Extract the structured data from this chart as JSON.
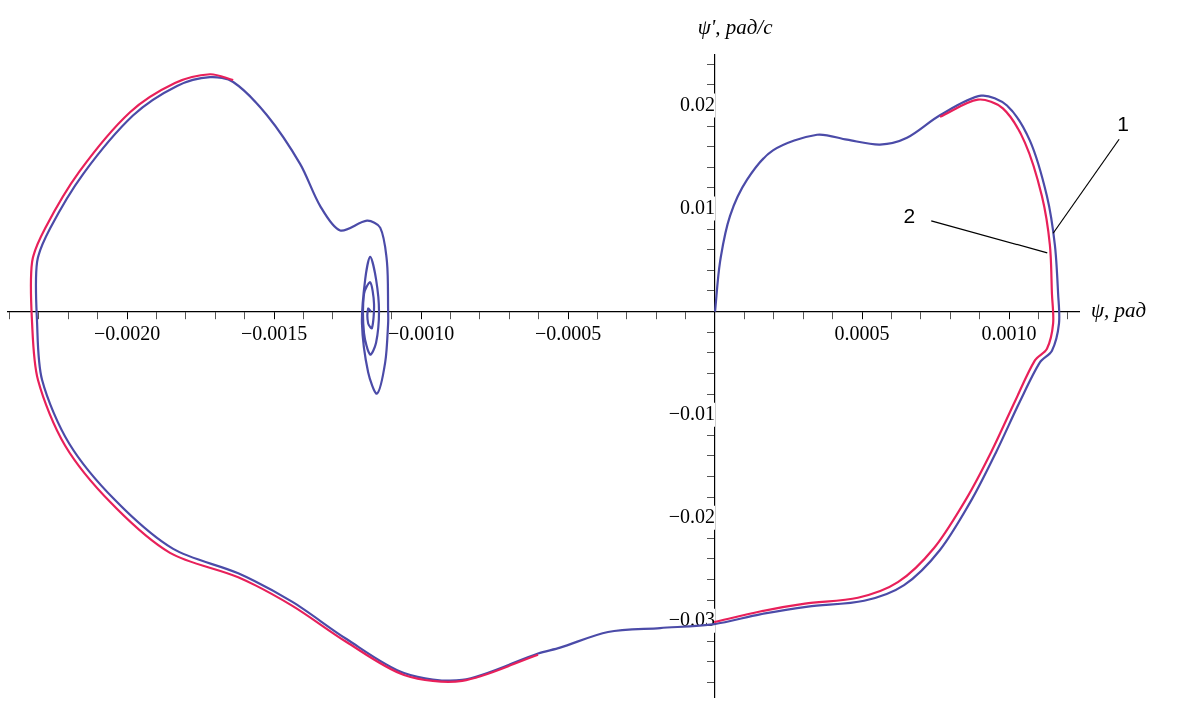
{
  "chart_data": {
    "type": "line",
    "xlabel": "ψ, рад",
    "ylabel": "ψ', рад/с",
    "xlim": [
      -0.002405,
      0.001238
    ],
    "ylim": [
      -0.0374,
      0.0249
    ],
    "xticks": [
      {
        "value": -0.0024,
        "label": null
      },
      {
        "value": -0.0023,
        "label": null
      },
      {
        "value": -0.0022,
        "label": null
      },
      {
        "value": -0.0021,
        "label": null
      },
      {
        "value": -0.002,
        "label": "−0.0020"
      },
      {
        "value": -0.0019,
        "label": null
      },
      {
        "value": -0.0018,
        "label": null
      },
      {
        "value": -0.0017,
        "label": null
      },
      {
        "value": -0.0016,
        "label": null
      },
      {
        "value": -0.0015,
        "label": "−0.0015"
      },
      {
        "value": -0.0014,
        "label": null
      },
      {
        "value": -0.0013,
        "label": null
      },
      {
        "value": -0.0012,
        "label": null
      },
      {
        "value": -0.0011,
        "label": null
      },
      {
        "value": -0.001,
        "label": "−0.0010"
      },
      {
        "value": -0.0009,
        "label": null
      },
      {
        "value": -0.0008,
        "label": null
      },
      {
        "value": -0.0007,
        "label": null
      },
      {
        "value": -0.0006,
        "label": null
      },
      {
        "value": -0.0005,
        "label": "−0.0005"
      },
      {
        "value": -0.0004,
        "label": null
      },
      {
        "value": -0.0003,
        "label": null
      },
      {
        "value": -0.0002,
        "label": null
      },
      {
        "value": -0.0001,
        "label": null
      },
      {
        "value": 0.0001,
        "label": null
      },
      {
        "value": 0.0002,
        "label": null
      },
      {
        "value": 0.0003,
        "label": null
      },
      {
        "value": 0.0004,
        "label": null
      },
      {
        "value": 0.0005,
        "label": "0.0005"
      },
      {
        "value": 0.0006,
        "label": null
      },
      {
        "value": 0.0007,
        "label": null
      },
      {
        "value": 0.0008,
        "label": null
      },
      {
        "value": 0.0009,
        "label": null
      },
      {
        "value": 0.001,
        "label": "0.0010"
      },
      {
        "value": 0.0011,
        "label": null
      },
      {
        "value": 0.0012,
        "label": null
      }
    ],
    "yticks": [
      {
        "value": -0.036,
        "label": null
      },
      {
        "value": -0.034,
        "label": null
      },
      {
        "value": -0.032,
        "label": null
      },
      {
        "value": -0.03,
        "label": "−0.03"
      },
      {
        "value": -0.028,
        "label": null
      },
      {
        "value": -0.026,
        "label": null
      },
      {
        "value": -0.024,
        "label": null
      },
      {
        "value": -0.022,
        "label": null
      },
      {
        "value": -0.02,
        "label": "−0.02"
      },
      {
        "value": -0.018,
        "label": null
      },
      {
        "value": -0.016,
        "label": null
      },
      {
        "value": -0.014,
        "label": null
      },
      {
        "value": -0.012,
        "label": null
      },
      {
        "value": -0.01,
        "label": "−0.01"
      },
      {
        "value": -0.008,
        "label": null
      },
      {
        "value": -0.006,
        "label": null
      },
      {
        "value": -0.004,
        "label": null
      },
      {
        "value": -0.002,
        "label": null
      },
      {
        "value": 0.002,
        "label": null
      },
      {
        "value": 0.004,
        "label": null
      },
      {
        "value": 0.006,
        "label": null
      },
      {
        "value": 0.008,
        "label": null
      },
      {
        "value": 0.01,
        "label": "0.01"
      },
      {
        "value": 0.012,
        "label": null
      },
      {
        "value": 0.014,
        "label": null
      },
      {
        "value": 0.016,
        "label": null
      },
      {
        "value": 0.018,
        "label": null
      },
      {
        "value": 0.02,
        "label": "0.02"
      },
      {
        "value": 0.022,
        "label": null
      },
      {
        "value": 0.024,
        "label": null
      }
    ],
    "grid": false,
    "legend": false,
    "marker": "none",
    "line_style": "solid",
    "annotations": [
      {
        "text": "1",
        "x": 0.00115,
        "y": 0.0076
      },
      {
        "text": "2",
        "x": 0.00113,
        "y": 0.0057
      }
    ],
    "series": [
      {
        "color": "#e8205a",
        "x": [
          0.000765,
          0.000894,
          0.000979,
          0.001054,
          0.001112,
          0.001139,
          0.001146,
          0.00115,
          0.001129,
          0.001088,
          0.00102,
          0.000939,
          0.000854,
          0.000745,
          0.000622,
          0.000486,
          0.000306,
          0.000153,
          -3e-06,
          null,
          -0.000602,
          -0.00086,
          -0.001058,
          -0.001255,
          -0.001439,
          -0.001622,
          -0.001854,
          -0.002054,
          -0.002211,
          -0.002303,
          -0.002323,
          -0.002323,
          -0.002279,
          -0.002163,
          -0.00199,
          -0.001837,
          -0.001718,
          -0.001639
        ],
        "values": [
          0.0189,
          0.02057,
          0.01972,
          0.0164,
          0.01119,
          0.00645,
          0.00171,
          -0.00114,
          -0.0036,
          -0.00474,
          -0.00872,
          -0.01365,
          -0.0182,
          -0.02294,
          -0.02626,
          -0.02777,
          -0.02834,
          -0.0291,
          -0.03014,
          null,
          -0.0333,
          -0.03583,
          -0.03526,
          -0.03204,
          -0.02853,
          -0.02578,
          -0.02341,
          -0.01858,
          -0.01299,
          -0.00664,
          -0.00114,
          0.00483,
          0.00806,
          0.01355,
          0.01934,
          0.02218,
          0.02303,
          0.02247
        ]
      },
      {
        "color": "#4b4ba8",
        "x": [
          0,
          1.7e-05,
          5.1e-05,
          0.000109,
          0.000197,
          0.000347,
          0.000449,
          0.000561,
          0.000653,
          0.000765,
          0.000905,
          0.000993,
          0.001071,
          0.001129,
          0.001156,
          0.001167,
          0.00117,
          0.001146,
          0.001105,
          0.001037,
          0.000956,
          0.000874,
          0.000765,
          0.000643,
          0.000507,
          0.000316,
          0.000153,
          -3e-06,
          -0.000187,
          -0.000364,
          -0.000527,
          -0.000602,
          -0.00086,
          -0.001058,
          -0.001255,
          -0.001439,
          -0.001622,
          -0.001843,
          -0.002041,
          -0.002197,
          -0.002289,
          -0.002306,
          -0.002306,
          -0.002262,
          -0.002149,
          -0.001979,
          -0.00183,
          -0.001718,
          -0.001639,
          -0.001524,
          -0.001411,
          -0.001343,
          -0.001275,
          -0.001184,
          -0.001139,
          -0.001116,
          -0.001112,
          -0.001112,
          -0.001122,
          -0.00115,
          -0.00118,
          -0.001201,
          -0.00119,
          -0.001173,
          -0.001153,
          -0.001143,
          -0.001153,
          -0.001173,
          -0.001194,
          -0.001194,
          -0.001173,
          -0.00116,
          -0.001167,
          -0.00118,
          -0.00118,
          -0.00117
        ],
        "values": [
          0,
          0.00483,
          0.00929,
          0.0128,
          0.01564,
          0.01716,
          0.01668,
          0.01621,
          0.01687,
          0.01905,
          0.02095,
          0.02,
          0.01659,
          0.01119,
          0.00645,
          0.00171,
          -0.00114,
          -0.00379,
          -0.00493,
          -0.00872,
          -0.01365,
          -0.0182,
          -0.02313,
          -0.02654,
          -0.02806,
          -0.02863,
          -0.02938,
          -0.03033,
          -0.03071,
          -0.03109,
          -0.03261,
          -0.03318,
          -0.03574,
          -0.03507,
          -0.03175,
          -0.02815,
          -0.0254,
          -0.02303,
          -0.01829,
          -0.0128,
          -0.00664,
          -0.00114,
          0.00483,
          0.00806,
          0.01337,
          0.01905,
          0.0219,
          0.02275,
          0.02228,
          0.01905,
          0.01431,
          0.01024,
          0.00787,
          0.00882,
          0.00815,
          0.00483,
          0.0001,
          -0.00114,
          -0.00493,
          -0.00796,
          -0.00588,
          -0.00114,
          0.00313,
          0.00531,
          0.00313,
          0,
          -0.00303,
          -0.00417,
          -0.00209,
          0.00171,
          0.00284,
          0.00076,
          -0.00161,
          -0.00114,
          0.00028,
          0
        ]
      }
    ]
  }
}
